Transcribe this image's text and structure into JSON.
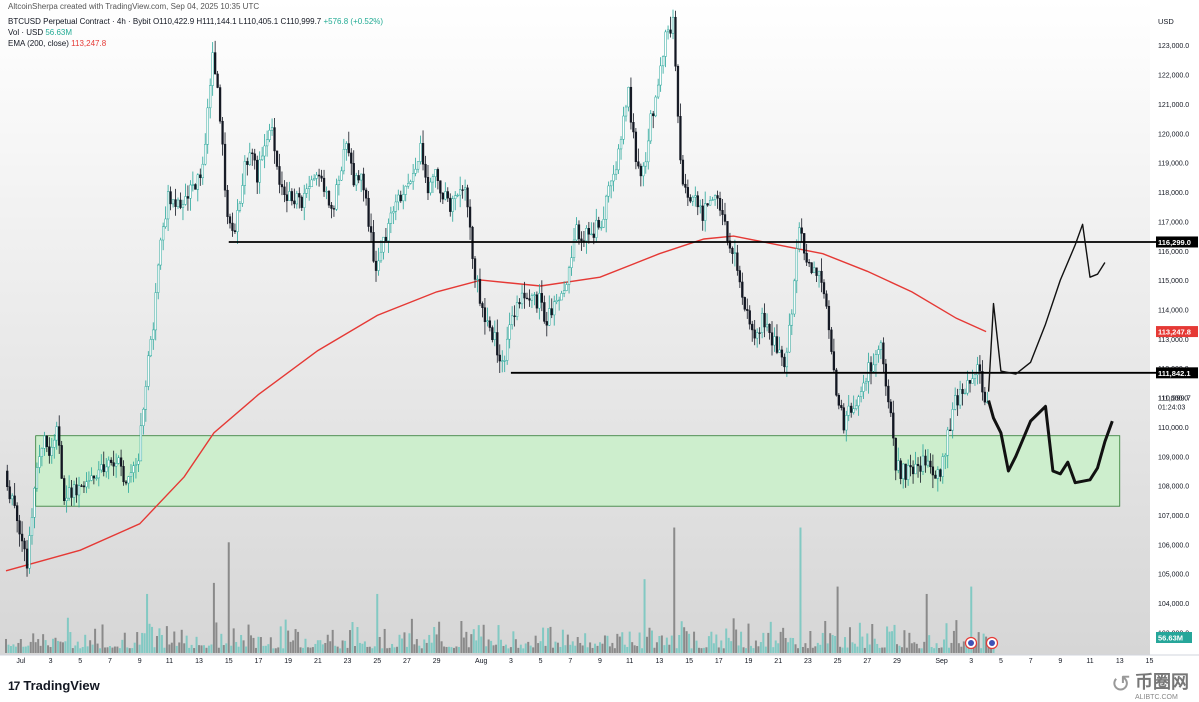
{
  "header": {
    "credit": "AltcoinSherpa created with TradingView.com, Sep 04, 2025 10:35 UTC",
    "symbol": "BTCUSD Perpetual Contract · 4h · Bybit",
    "ohlc": "O110,422.9  H111,144.1  L110,405.1  C110,999.7",
    "change": "+576.8 (+0.52%)",
    "vol_label": "Vol · USD",
    "vol_value": "56.63M",
    "ema_label": "EMA (200, close)",
    "ema_value": "113,247.8"
  },
  "footer": {
    "logo_mark": "17",
    "logo_text": "TradingView",
    "watermark_cn": "币圈网",
    "watermark_domain": "ALIBTC.COM"
  },
  "colors": {
    "up": "#26a69a",
    "down": "#131722",
    "ema": "#e53935",
    "zone_fill": "#cdeecd",
    "zone_border": "#2e7d32",
    "level_line": "#000000",
    "last_price_bg": "#131722",
    "ema_label_bg": "#e53935",
    "vol_label_bg": "#26a69a",
    "volume_up": "#82c9c3",
    "volume_down": "#8a8a8a"
  },
  "chart_data": {
    "type": "candlestick",
    "symbol": "BTCUSD Perpetual Contract",
    "timeframe": "4h",
    "exchange": "Bybit",
    "currency": "USD",
    "price_range": [
      102300,
      124200
    ],
    "y_ticks": [
      103000,
      104000,
      105000,
      106000,
      107000,
      108000,
      109000,
      110000,
      111000,
      112000,
      113000,
      114000,
      115000,
      116000,
      117000,
      118000,
      119000,
      120000,
      121000,
      122000,
      123000
    ],
    "x_ticks": [
      {
        "label": "Jul",
        "date": "2025-07-01"
      },
      {
        "label": "3",
        "date": "2025-07-03"
      },
      {
        "label": "5",
        "date": "2025-07-05"
      },
      {
        "label": "7",
        "date": "2025-07-07"
      },
      {
        "label": "9",
        "date": "2025-07-09"
      },
      {
        "label": "11",
        "date": "2025-07-11"
      },
      {
        "label": "13",
        "date": "2025-07-13"
      },
      {
        "label": "15",
        "date": "2025-07-15"
      },
      {
        "label": "17",
        "date": "2025-07-17"
      },
      {
        "label": "19",
        "date": "2025-07-19"
      },
      {
        "label": "21",
        "date": "2025-07-21"
      },
      {
        "label": "23",
        "date": "2025-07-23"
      },
      {
        "label": "25",
        "date": "2025-07-25"
      },
      {
        "label": "27",
        "date": "2025-07-27"
      },
      {
        "label": "29",
        "date": "2025-07-29"
      },
      {
        "label": "Aug",
        "date": "2025-08-01"
      },
      {
        "label": "3",
        "date": "2025-08-03"
      },
      {
        "label": "5",
        "date": "2025-08-05"
      },
      {
        "label": "7",
        "date": "2025-08-07"
      },
      {
        "label": "9",
        "date": "2025-08-09"
      },
      {
        "label": "11",
        "date": "2025-08-11"
      },
      {
        "label": "13",
        "date": "2025-08-13"
      },
      {
        "label": "15",
        "date": "2025-08-15"
      },
      {
        "label": "17",
        "date": "2025-08-17"
      },
      {
        "label": "19",
        "date": "2025-08-19"
      },
      {
        "label": "21",
        "date": "2025-08-21"
      },
      {
        "label": "23",
        "date": "2025-08-23"
      },
      {
        "label": "25",
        "date": "2025-08-25"
      },
      {
        "label": "27",
        "date": "2025-08-27"
      },
      {
        "label": "29",
        "date": "2025-08-29"
      },
      {
        "label": "Sep",
        "date": "2025-09-01"
      },
      {
        "label": "3",
        "date": "2025-09-03"
      },
      {
        "label": "5",
        "date": "2025-09-05"
      },
      {
        "label": "7",
        "date": "2025-09-07"
      },
      {
        "label": "9",
        "date": "2025-09-09"
      },
      {
        "label": "11",
        "date": "2025-09-11"
      },
      {
        "label": "13",
        "date": "2025-09-13"
      },
      {
        "label": "15",
        "date": "2025-09-15"
      }
    ],
    "price_path": [
      [
        "2025-06-30",
        108500
      ],
      [
        "2025-07-01",
        106500
      ],
      [
        "2025-07-01T12:00",
        105200
      ],
      [
        "2025-07-02",
        107800
      ],
      [
        "2025-07-02T12:00",
        109500
      ],
      [
        "2025-07-03",
        109300
      ],
      [
        "2025-07-03T12:00",
        109900
      ],
      [
        "2025-07-04",
        107600
      ],
      [
        "2025-07-05",
        108000
      ],
      [
        "2025-07-06",
        108200
      ],
      [
        "2025-07-07",
        108800
      ],
      [
        "2025-07-07T12:00",
        109000
      ],
      [
        "2025-07-08",
        108100
      ],
      [
        "2025-07-08T12:00",
        108600
      ],
      [
        "2025-07-09",
        108900
      ],
      [
        "2025-07-09T12:00",
        111500
      ],
      [
        "2025-07-10",
        113500
      ],
      [
        "2025-07-10T12:00",
        116500
      ],
      [
        "2025-07-11",
        117800
      ],
      [
        "2025-07-12",
        117600
      ],
      [
        "2025-07-13",
        118300
      ],
      [
        "2025-07-13T12:00",
        119500
      ],
      [
        "2025-07-14",
        122800
      ],
      [
        "2025-07-14T12:00",
        120500
      ],
      [
        "2025-07-15",
        117000
      ],
      [
        "2025-07-15T12:00",
        116400
      ],
      [
        "2025-07-16",
        118500
      ],
      [
        "2025-07-16T12:00",
        119400
      ],
      [
        "2025-07-17",
        118500
      ],
      [
        "2025-07-18",
        120300
      ],
      [
        "2025-07-18T12:00",
        118500
      ],
      [
        "2025-07-19",
        117800
      ],
      [
        "2025-07-20",
        117600
      ],
      [
        "2025-07-21",
        118800
      ],
      [
        "2025-07-22",
        117200
      ],
      [
        "2025-07-23",
        119600
      ],
      [
        "2025-07-23T12:00",
        118300
      ],
      [
        "2025-07-24",
        118800
      ],
      [
        "2025-07-25",
        115200
      ],
      [
        "2025-07-25T12:00",
        116200
      ],
      [
        "2025-07-26",
        117500
      ],
      [
        "2025-07-27",
        118200
      ],
      [
        "2025-07-28",
        119500
      ],
      [
        "2025-07-28T12:00",
        117900
      ],
      [
        "2025-07-29",
        118500
      ],
      [
        "2025-07-30",
        117600
      ],
      [
        "2025-07-31",
        118400
      ],
      [
        "2025-07-31T12:00",
        115700
      ],
      [
        "2025-08-01",
        114500
      ],
      [
        "2025-08-01T12:00",
        113500
      ],
      [
        "2025-08-02",
        113000
      ],
      [
        "2025-08-02T12:00",
        112100
      ],
      [
        "2025-08-03",
        113400
      ],
      [
        "2025-08-03T12:00",
        114100
      ],
      [
        "2025-08-04",
        114500
      ],
      [
        "2025-08-05",
        114300
      ],
      [
        "2025-08-05T12:00",
        113500
      ],
      [
        "2025-08-06",
        114300
      ],
      [
        "2025-08-07",
        115200
      ],
      [
        "2025-08-07T12:00",
        116700
      ],
      [
        "2025-08-08",
        116500
      ],
      [
        "2025-08-09",
        116800
      ],
      [
        "2025-08-10",
        118500
      ],
      [
        "2025-08-11",
        121400
      ],
      [
        "2025-08-11T12:00",
        119000
      ],
      [
        "2025-08-12",
        118700
      ],
      [
        "2025-08-12T12:00",
        120500
      ],
      [
        "2025-08-13",
        121500
      ],
      [
        "2025-08-13T12:00",
        123200
      ],
      [
        "2025-08-14",
        123900
      ],
      [
        "2025-08-14T12:00",
        118800
      ],
      [
        "2025-08-15",
        117900
      ],
      [
        "2025-08-16",
        117300
      ],
      [
        "2025-08-17",
        117700
      ],
      [
        "2025-08-18",
        116100
      ],
      [
        "2025-08-18T12:00",
        115000
      ],
      [
        "2025-08-19",
        113900
      ],
      [
        "2025-08-19T12:00",
        113300
      ],
      [
        "2025-08-20",
        113600
      ],
      [
        "2025-08-21",
        112700
      ],
      [
        "2025-08-21T12:00",
        112300
      ],
      [
        "2025-08-22",
        113900
      ],
      [
        "2025-08-22T12:00",
        116800
      ],
      [
        "2025-08-23",
        115600
      ],
      [
        "2025-08-24",
        114900
      ],
      [
        "2025-08-24T12:00",
        113600
      ],
      [
        "2025-08-25",
        111100
      ],
      [
        "2025-08-25T12:00",
        110100
      ],
      [
        "2025-08-26",
        110600
      ],
      [
        "2025-08-27",
        111800
      ],
      [
        "2025-08-27T12:00",
        112300
      ],
      [
        "2025-08-28",
        112700
      ],
      [
        "2025-08-28T12:00",
        111100
      ],
      [
        "2025-08-29",
        108600
      ],
      [
        "2025-08-30",
        108400
      ],
      [
        "2025-08-31",
        108800
      ],
      [
        "2025-09-01",
        108200
      ],
      [
        "2025-09-01T12:00",
        109700
      ],
      [
        "2025-09-02",
        110800
      ],
      [
        "2025-09-03",
        111700
      ],
      [
        "2025-09-03T12:00",
        112000
      ],
      [
        "2025-09-04",
        110999.7
      ]
    ],
    "ema200_path": [
      [
        "2025-06-30",
        105100
      ],
      [
        "2025-07-05",
        105800
      ],
      [
        "2025-07-09",
        106700
      ],
      [
        "2025-07-12",
        108300
      ],
      [
        "2025-07-14",
        109800
      ],
      [
        "2025-07-17",
        111100
      ],
      [
        "2025-07-21",
        112600
      ],
      [
        "2025-07-25",
        113800
      ],
      [
        "2025-07-29",
        114600
      ],
      [
        "2025-08-01",
        115000
      ],
      [
        "2025-08-05",
        114800
      ],
      [
        "2025-08-09",
        115100
      ],
      [
        "2025-08-13",
        115900
      ],
      [
        "2025-08-16",
        116400
      ],
      [
        "2025-08-18",
        116500
      ],
      [
        "2025-08-21",
        116200
      ],
      [
        "2025-08-24",
        115900
      ],
      [
        "2025-08-27",
        115300
      ],
      [
        "2025-08-30",
        114600
      ],
      [
        "2025-09-02",
        113700
      ],
      [
        "2025-09-04",
        113247.8
      ]
    ],
    "volume_max": 21000000,
    "volume_last": "56.63M",
    "volume_spikes": [
      {
        "date": "2025-07-09T12:00",
        "value": 8000000
      },
      {
        "date": "2025-07-14",
        "value": 9500000
      },
      {
        "date": "2025-07-15",
        "value": 15000000
      },
      {
        "date": "2025-07-25",
        "value": 8000000
      },
      {
        "date": "2025-08-12",
        "value": 10000000
      },
      {
        "date": "2025-08-14",
        "value": 17000000
      },
      {
        "date": "2025-08-22T12:00",
        "value": 17000000
      },
      {
        "date": "2025-08-25",
        "value": 9000000
      },
      {
        "date": "2025-08-31",
        "value": 8000000
      },
      {
        "date": "2025-09-03",
        "value": 9000000
      }
    ],
    "support_zone": {
      "low": 107300,
      "high": 109700,
      "from": "2025-07-02",
      "to": "2025-09-13"
    },
    "horizontal_levels": [
      {
        "price": 116299.0,
        "label": "116,299.0",
        "from": "2025-07-15"
      },
      {
        "price": 111842.1,
        "label": "111,842.1",
        "from": "2025-08-03"
      }
    ],
    "projection_bullish": [
      [
        "2025-09-04T04:00",
        111200
      ],
      [
        "2025-09-04T12:00",
        114200
      ],
      [
        "2025-09-05",
        111900
      ],
      [
        "2025-09-06",
        111800
      ],
      [
        "2025-09-07",
        112200
      ],
      [
        "2025-09-08",
        113500
      ],
      [
        "2025-09-09",
        115000
      ],
      [
        "2025-09-10",
        116200
      ],
      [
        "2025-09-10T12:00",
        116900
      ],
      [
        "2025-09-11",
        115100
      ],
      [
        "2025-09-11T12:00",
        115200
      ],
      [
        "2025-09-12",
        115600
      ]
    ],
    "projection_bearish": [
      [
        "2025-09-04T04:00",
        110900
      ],
      [
        "2025-09-04T12:00",
        110300
      ],
      [
        "2025-09-05",
        109800
      ],
      [
        "2025-09-05T12:00",
        108500
      ],
      [
        "2025-09-06",
        109000
      ],
      [
        "2025-09-07",
        110200
      ],
      [
        "2025-09-08",
        110700
      ],
      [
        "2025-09-08T12:00",
        108500
      ],
      [
        "2025-09-09",
        108400
      ],
      [
        "2025-09-09T12:00",
        108800
      ],
      [
        "2025-09-10",
        108100
      ],
      [
        "2025-09-11",
        108200
      ],
      [
        "2025-09-11T12:00",
        108600
      ],
      [
        "2025-09-12",
        109500
      ],
      [
        "2025-09-12T12:00",
        110200
      ]
    ],
    "price_labels": {
      "last": "110,999.7",
      "countdown": "01:24:03",
      "ema": "113,247.8",
      "level_high": "116,299.0",
      "level_low": "111,842.1",
      "volume": "56.63M"
    },
    "currency_label": "USD"
  }
}
